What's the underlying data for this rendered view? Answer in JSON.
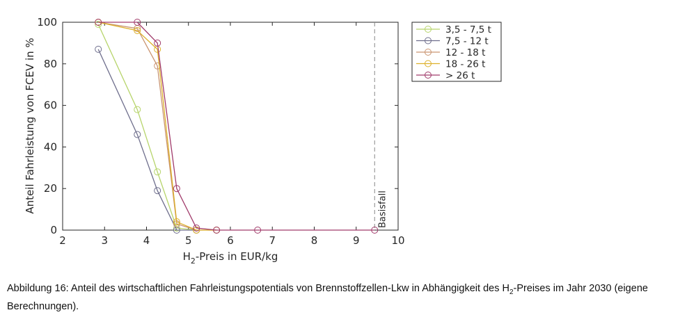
{
  "chart_data": {
    "type": "line",
    "xlabel_parts": [
      "H",
      "2",
      "-Preis in EUR/kg"
    ],
    "ylabel": "Anteil Fahrleistung von FCEV in %",
    "xlim": [
      2,
      10
    ],
    "xticks": [
      2,
      3,
      4,
      5,
      6,
      7,
      8,
      9,
      10
    ],
    "ylim": [
      0,
      100
    ],
    "yticks": [
      0,
      20,
      40,
      60,
      80,
      100
    ],
    "grid": false,
    "legend": "outside-right",
    "series": [
      {
        "name": "3,5 - 7,5 t",
        "color": "#b6d46a",
        "x": [
          2.85,
          3.78,
          4.26,
          4.72,
          5.19
        ],
        "values": [
          99,
          58,
          28,
          1,
          0
        ]
      },
      {
        "name": "7,5 - 12 t",
        "color": "#6e6e8c",
        "x": [
          2.85,
          3.78,
          4.26,
          4.72,
          5.19
        ],
        "values": [
          87,
          46,
          19,
          0,
          0
        ]
      },
      {
        "name": "12 - 18 t",
        "color": "#c99470",
        "x": [
          2.85,
          3.78,
          4.26,
          4.72,
          5.19,
          5.67
        ],
        "values": [
          100,
          97,
          79,
          3,
          0,
          0
        ]
      },
      {
        "name": "18 - 26 t",
        "color": "#ddb02a",
        "x": [
          2.85,
          3.78,
          4.26,
          4.72,
          5.19,
          5.67
        ],
        "values": [
          100,
          96,
          87,
          4,
          0,
          0
        ]
      },
      {
        "name": "> 26 t",
        "color": "#a03a6a",
        "x": [
          2.85,
          3.78,
          4.26,
          4.72,
          5.19,
          5.67,
          6.65,
          9.44
        ],
        "values": [
          100,
          100,
          90,
          20,
          1,
          0,
          0,
          0
        ]
      }
    ],
    "annotations": [
      {
        "x": 9.44,
        "text": "Basisfall"
      }
    ]
  },
  "caption": [
    "Abbildung 16: Anteil des wirtschaftlichen Fahrleistungspotentials von Brennstoffzellen-Lkw in Abhängigkeit des H",
    "2",
    "-Preises im Jahr 2030 (eigene Berechnungen)."
  ]
}
